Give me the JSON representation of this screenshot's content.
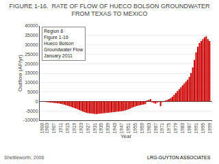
{
  "chart_data": {
    "type": "bar",
    "title": "FIGURE 1-16.  RATE OF FLOW OF HUECO BOLSON GROUNDWATER\nFROM TEXAS TO MEXICO",
    "x_label": "Year",
    "y_label": "Outflow (AF/yr)",
    "annotations": [
      "Region 8\nFigure 1-16\nHueco Bolson\nGroundwater Flow\nJanuary 2011",
      "Shettleworth, 2006",
      "LRG-GUYTON ASSOCIATES"
    ],
    "x": [
      1900,
      1901,
      1902,
      1903,
      1904,
      1905,
      1906,
      1907,
      1908,
      1909,
      1910,
      1911,
      1912,
      1913,
      1914,
      1915,
      1916,
      1917,
      1918,
      1919,
      1920,
      1921,
      1922,
      1923,
      1924,
      1925,
      1926,
      1927,
      1928,
      1929,
      1930,
      1931,
      1932,
      1933,
      1934,
      1935,
      1936,
      1937,
      1938,
      1939,
      1940,
      1941,
      1942,
      1943,
      1944,
      1945,
      1946,
      1947,
      1948,
      1949,
      1950,
      1951,
      1952,
      1953,
      1954,
      1955,
      1956,
      1957,
      1958,
      1959,
      1960,
      1961,
      1962,
      1963,
      1964,
      1965,
      1966,
      1967,
      1968,
      1969,
      1970,
      1971,
      1972,
      1973,
      1974,
      1975,
      1976,
      1977,
      1978,
      1979,
      1980,
      1981,
      1982,
      1983,
      1984,
      1985,
      1986,
      1987,
      1988,
      1989,
      1990,
      1991,
      1992,
      1993,
      1994,
      1995,
      1996,
      1997,
      1998,
      1999
    ],
    "values": [
      0,
      -200,
      -300,
      -400,
      -500,
      -600,
      -700,
      -800,
      -900,
      -1000,
      -1100,
      -1300,
      -1500,
      -1700,
      -2000,
      -2300,
      -2600,
      -2900,
      -3200,
      -3500,
      -3800,
      -4200,
      -4600,
      -5000,
      -5400,
      -5700,
      -6000,
      -6200,
      -6300,
      -6400,
      -6500,
      -6600,
      -6700,
      -6600,
      -6500,
      -6400,
      -6300,
      -6200,
      -6100,
      -6000,
      -5900,
      -5800,
      -5700,
      -5600,
      -5500,
      -5400,
      -5300,
      -5200,
      -5000,
      -4800,
      -4500,
      -4200,
      -3800,
      -3400,
      -3000,
      -2700,
      -2400,
      -2200,
      -2000,
      -1800,
      -1600,
      -1400,
      500,
      800,
      1200,
      -500,
      -800,
      -1200,
      -600,
      -300,
      -2500,
      -400,
      200,
      500,
      800,
      1200,
      1800,
      2500,
      3500,
      4500,
      5500,
      6500,
      7500,
      8500,
      9500,
      10500,
      11500,
      13000,
      15000,
      18000,
      22000,
      26000,
      29000,
      31000,
      32000,
      33000,
      34000,
      34500,
      33000,
      32000
    ],
    "color": "#cc0000",
    "xlim": [
      1898.5,
      2000.5
    ],
    "xticks": [
      1900,
      1903,
      1907,
      1911,
      1915,
      1919,
      1923,
      1927,
      1931,
      1935,
      1939,
      1943,
      1947,
      1951,
      1955,
      1959,
      1963,
      1967,
      1971,
      1975,
      1979,
      1983,
      1987,
      1991,
      1995,
      1999
    ],
    "ylim": [
      -10000,
      40000
    ],
    "yticks": [
      -10000,
      -5000,
      0,
      5000,
      10000,
      15000,
      20000,
      25000,
      30000,
      35000,
      40000
    ],
    "grid": true
  }
}
